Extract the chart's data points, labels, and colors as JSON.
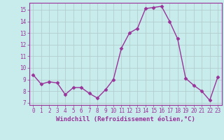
{
  "x": [
    0,
    1,
    2,
    3,
    4,
    5,
    6,
    7,
    8,
    9,
    10,
    11,
    12,
    13,
    14,
    15,
    16,
    17,
    18,
    19,
    20,
    21,
    22,
    23
  ],
  "y": [
    9.4,
    8.6,
    8.8,
    8.7,
    7.7,
    8.3,
    8.3,
    7.8,
    7.4,
    8.1,
    9.0,
    11.7,
    13.0,
    13.4,
    15.1,
    15.2,
    15.3,
    14.0,
    12.5,
    9.1,
    8.5,
    8.0,
    7.2,
    9.2
  ],
  "line_color": "#993399",
  "marker": "D",
  "marker_size": 2.5,
  "bg_color": "#c8ecec",
  "grid_color": "#b0c8c8",
  "text_color": "#993399",
  "xlabel": "Windchill (Refroidissement éolien,°C)",
  "xlim": [
    -0.5,
    23.5
  ],
  "ylim": [
    6.8,
    15.6
  ],
  "yticks": [
    7,
    8,
    9,
    10,
    11,
    12,
    13,
    14,
    15
  ],
  "xticks": [
    0,
    1,
    2,
    3,
    4,
    5,
    6,
    7,
    8,
    9,
    10,
    11,
    12,
    13,
    14,
    15,
    16,
    17,
    18,
    19,
    20,
    21,
    22,
    23
  ],
  "xtick_labels": [
    "0",
    "1",
    "2",
    "3",
    "4",
    "5",
    "6",
    "7",
    "8",
    "9",
    "10",
    "11",
    "12",
    "13",
    "14",
    "15",
    "16",
    "17",
    "18",
    "19",
    "20",
    "21",
    "22",
    "23"
  ],
  "tick_fontsize": 5.5,
  "xlabel_fontsize": 6.5,
  "spine_color": "#993399",
  "linewidth": 1.0
}
